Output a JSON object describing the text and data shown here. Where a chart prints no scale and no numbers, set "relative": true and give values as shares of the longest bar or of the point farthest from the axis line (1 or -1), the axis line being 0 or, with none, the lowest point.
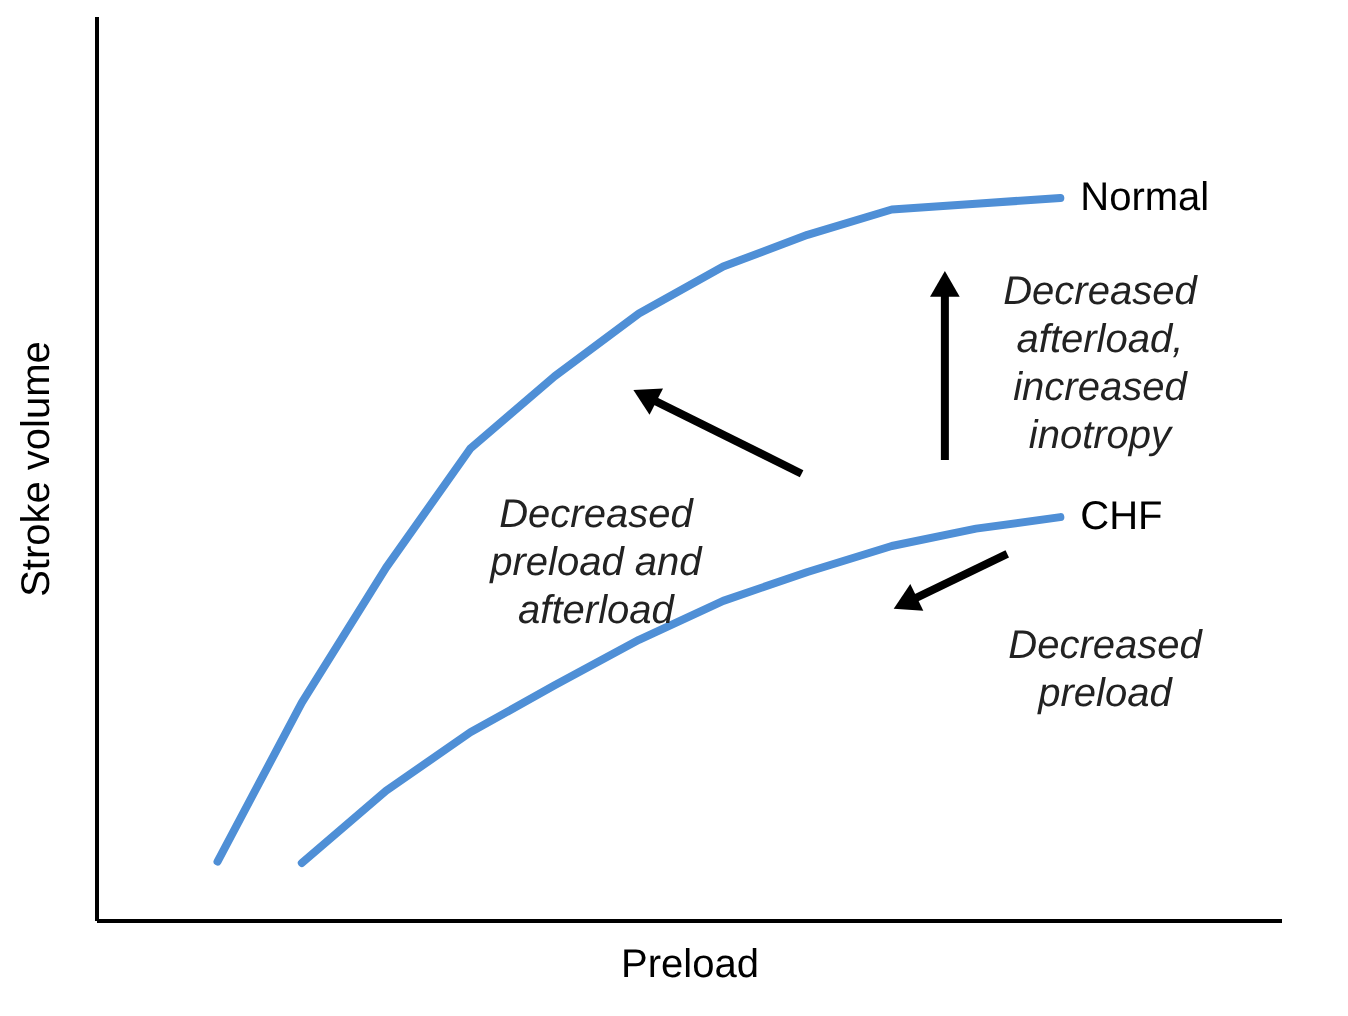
{
  "chart_data": {
    "type": "line",
    "relative": true,
    "xlabel": "Preload",
    "ylabel": "Stroke volume",
    "tick_labels": false,
    "line_style": "solid",
    "categories": [
      null,
      null,
      null,
      null,
      null,
      null,
      null,
      null,
      null,
      null,
      null
    ],
    "series": [
      {
        "name": "Normal",
        "color": "#4f8fd6",
        "values": [
          0.081,
          0.301,
          0.488,
          0.653,
          0.753,
          0.84,
          0.905,
          0.949,
          0.984,
          0.992,
          1
        ]
      },
      {
        "name": "CHF",
        "color": "#4f8fd6",
        "values": [
          null,
          0.079,
          0.179,
          0.26,
          0.325,
          0.388,
          0.442,
          0.482,
          0.518,
          0.542,
          0.558
        ]
      }
    ],
    "annotations": [
      "Decreased\npreload and\nafterload",
      "Decreased\nafterload,\nincreased\ninotropy",
      "Decreased\npreload"
    ]
  }
}
